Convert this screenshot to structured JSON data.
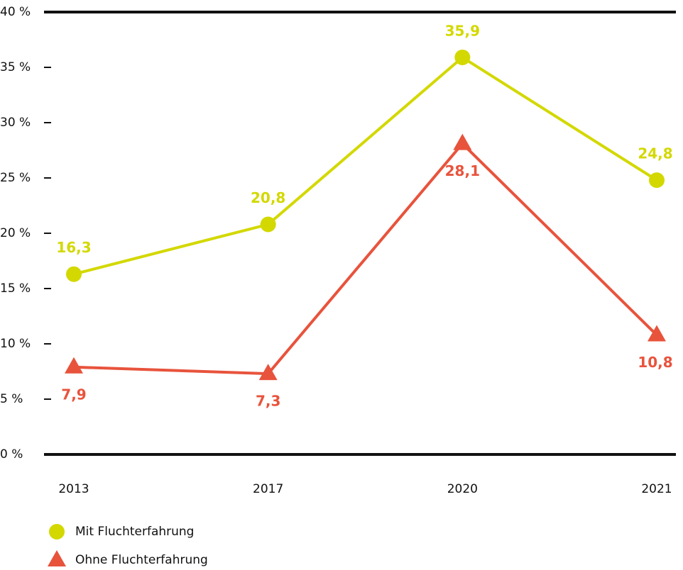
{
  "chart_data": {
    "type": "line",
    "categories": [
      "2013",
      "2017",
      "2020",
      "2021"
    ],
    "series": [
      {
        "name": "Mit Fluchterfahrung",
        "color": "#d3d800",
        "marker": "circle",
        "values": [
          16.3,
          20.8,
          35.9,
          24.8
        ],
        "value_labels": [
          "16,3",
          "20,8",
          "35,9",
          "24,8"
        ]
      },
      {
        "name": "Ohne Fluchterfahrung",
        "color": "#e8533c",
        "marker": "triangle",
        "values": [
          7.9,
          7.3,
          28.1,
          10.8
        ],
        "value_labels": [
          "7,9",
          "7,3",
          "28,1",
          "10,8"
        ]
      }
    ],
    "ylim": [
      0,
      40
    ],
    "yticks": [
      {
        "value": 0,
        "label": "0 %"
      },
      {
        "value": 5,
        "label": "5 %"
      },
      {
        "value": 10,
        "label": "10 %"
      },
      {
        "value": 15,
        "label": "15 %"
      },
      {
        "value": 20,
        "label": "20 %"
      },
      {
        "value": 25,
        "label": "25 %"
      },
      {
        "value": 30,
        "label": "30 %"
      },
      {
        "value": 35,
        "label": "35 %"
      },
      {
        "value": 40,
        "label": "40 %"
      }
    ],
    "legend": "bottom-left"
  }
}
